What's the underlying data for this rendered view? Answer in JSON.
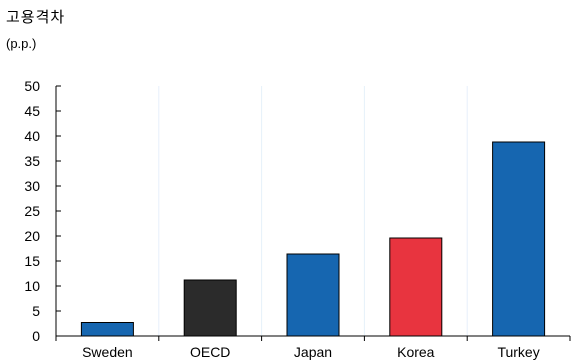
{
  "chart_data": {
    "type": "bar",
    "title": "",
    "ylabel": "고용격차",
    "yunit": "(p.p.)",
    "xlabel": "",
    "categories": [
      "Sweden",
      "OECD",
      "Japan",
      "Korea",
      "Turkey"
    ],
    "values": [
      2.7,
      11.2,
      16.4,
      19.6,
      38.8
    ],
    "bar_colors": [
      "#1666b0",
      "#2b2b2b",
      "#1666b0",
      "#e8343f",
      "#1666b0"
    ],
    "ylim": [
      0,
      50
    ],
    "yticks": [
      0,
      5,
      10,
      15,
      20,
      25,
      30,
      35,
      40,
      45,
      50
    ],
    "grid": false,
    "legend": "none"
  }
}
